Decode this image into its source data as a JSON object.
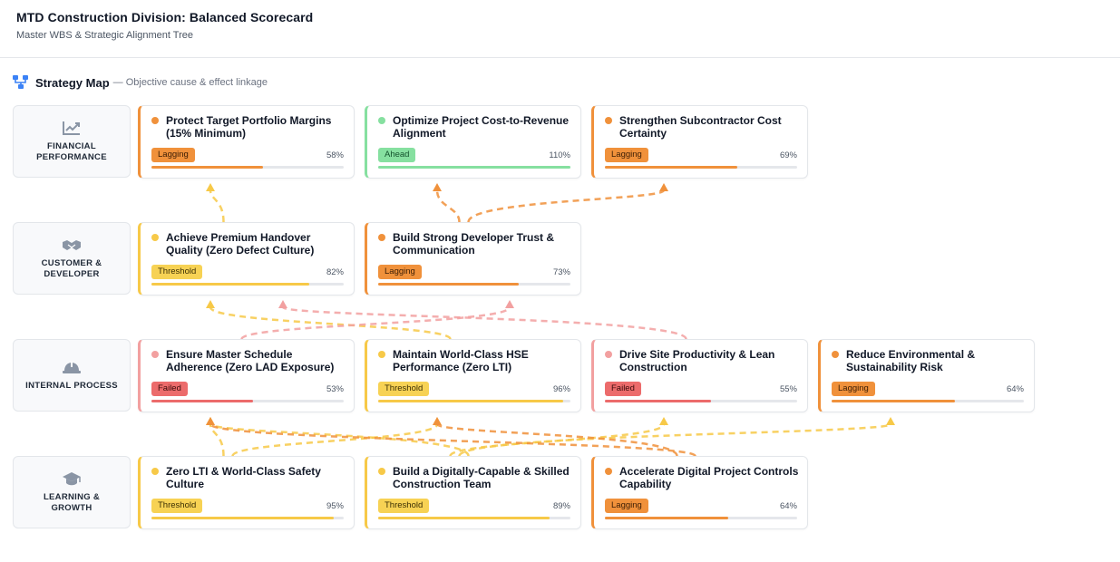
{
  "header": {
    "title": "MTD Construction Division: Balanced Scorecard",
    "subtitle": "Master WBS & Strategic Alignment Tree"
  },
  "section": {
    "title": "Strategy Map",
    "subtitle": "— Objective cause & effect linkage",
    "icon": "hierarchy-icon"
  },
  "colors": {
    "lagging": "#f0913b",
    "ahead": "#86e0a0",
    "threshold": "#f7c948",
    "failed": "#ec6b6b",
    "link_threshold": "#f7c948",
    "link_lagging": "#f0913b",
    "link_failed": "#f2a0a0"
  },
  "rows": [
    {
      "label": "FINANCIAL\nPERFORMANCE",
      "icon": "chart-line-icon"
    },
    {
      "label": "CUSTOMER &\nDEVELOPER",
      "icon": "handshake-icon"
    },
    {
      "label": "INTERNAL PROCESS",
      "icon": "hard-hat-icon"
    },
    {
      "label": "LEARNING &\nGROWTH",
      "icon": "graduation-cap-icon"
    }
  ],
  "objectives": [
    [
      {
        "title": "Protect Target Portfolio Margins (15% Minimum)",
        "status": "Lagging",
        "percent": "58%",
        "progress": 0.58
      },
      {
        "title": "Optimize Project Cost-to-Revenue Alignment",
        "status": "Ahead",
        "percent": "110%",
        "progress": 1.0
      },
      {
        "title": "Strengthen Subcontractor Cost Certainty",
        "status": "Lagging",
        "percent": "69%",
        "progress": 0.69
      }
    ],
    [
      {
        "title": "Achieve Premium Handover Quality (Zero Defect Culture)",
        "status": "Threshold",
        "percent": "82%",
        "progress": 0.82
      },
      {
        "title": "Build Strong Developer Trust & Communication",
        "status": "Lagging",
        "percent": "73%",
        "progress": 0.73
      }
    ],
    [
      {
        "title": "Ensure Master Schedule Adherence (Zero LAD Exposure)",
        "status": "Failed",
        "percent": "53%",
        "progress": 0.53
      },
      {
        "title": "Maintain World-Class HSE Performance (Zero LTI)",
        "status": "Threshold",
        "percent": "96%",
        "progress": 0.96
      },
      {
        "title": "Drive Site Productivity & Lean Construction",
        "status": "Failed",
        "percent": "55%",
        "progress": 0.55
      },
      {
        "title": "Reduce Environmental & Sustainability Risk",
        "status": "Lagging",
        "percent": "64%",
        "progress": 0.64
      }
    ],
    [
      {
        "title": "Zero LTI & World-Class Safety Culture",
        "status": "Threshold",
        "percent": "95%",
        "progress": 0.95
      },
      {
        "title": "Build a Digitally-Capable & Skilled Construction Team",
        "status": "Threshold",
        "percent": "89%",
        "progress": 0.89
      },
      {
        "title": "Accelerate Digital Project Controls Capability",
        "status": "Lagging",
        "percent": "64%",
        "progress": 0.64
      }
    ]
  ],
  "links": [
    {
      "from": [
        1,
        0
      ],
      "to": [
        0,
        0
      ],
      "status": "threshold"
    },
    {
      "from": [
        1,
        1
      ],
      "to": [
        0,
        1
      ],
      "status": "lagging"
    },
    {
      "from": [
        1,
        1
      ],
      "to": [
        0,
        2
      ],
      "status": "lagging"
    },
    {
      "from": [
        2,
        1
      ],
      "to": [
        1,
        0
      ],
      "status": "threshold"
    },
    {
      "from": [
        2,
        2
      ],
      "to": [
        1,
        0
      ],
      "status": "failed"
    },
    {
      "from": [
        2,
        0
      ],
      "to": [
        1,
        1
      ],
      "status": "failed"
    },
    {
      "from": [
        3,
        0
      ],
      "to": [
        2,
        0
      ],
      "status": "threshold"
    },
    {
      "from": [
        3,
        0
      ],
      "to": [
        2,
        1
      ],
      "status": "threshold"
    },
    {
      "from": [
        3,
        1
      ],
      "to": [
        2,
        0
      ],
      "status": "threshold"
    },
    {
      "from": [
        3,
        1
      ],
      "to": [
        2,
        2
      ],
      "status": "threshold"
    },
    {
      "from": [
        3,
        1
      ],
      "to": [
        2,
        3
      ],
      "status": "threshold"
    },
    {
      "from": [
        3,
        2
      ],
      "to": [
        2,
        0
      ],
      "status": "lagging"
    },
    {
      "from": [
        3,
        2
      ],
      "to": [
        2,
        1
      ],
      "status": "lagging"
    }
  ]
}
